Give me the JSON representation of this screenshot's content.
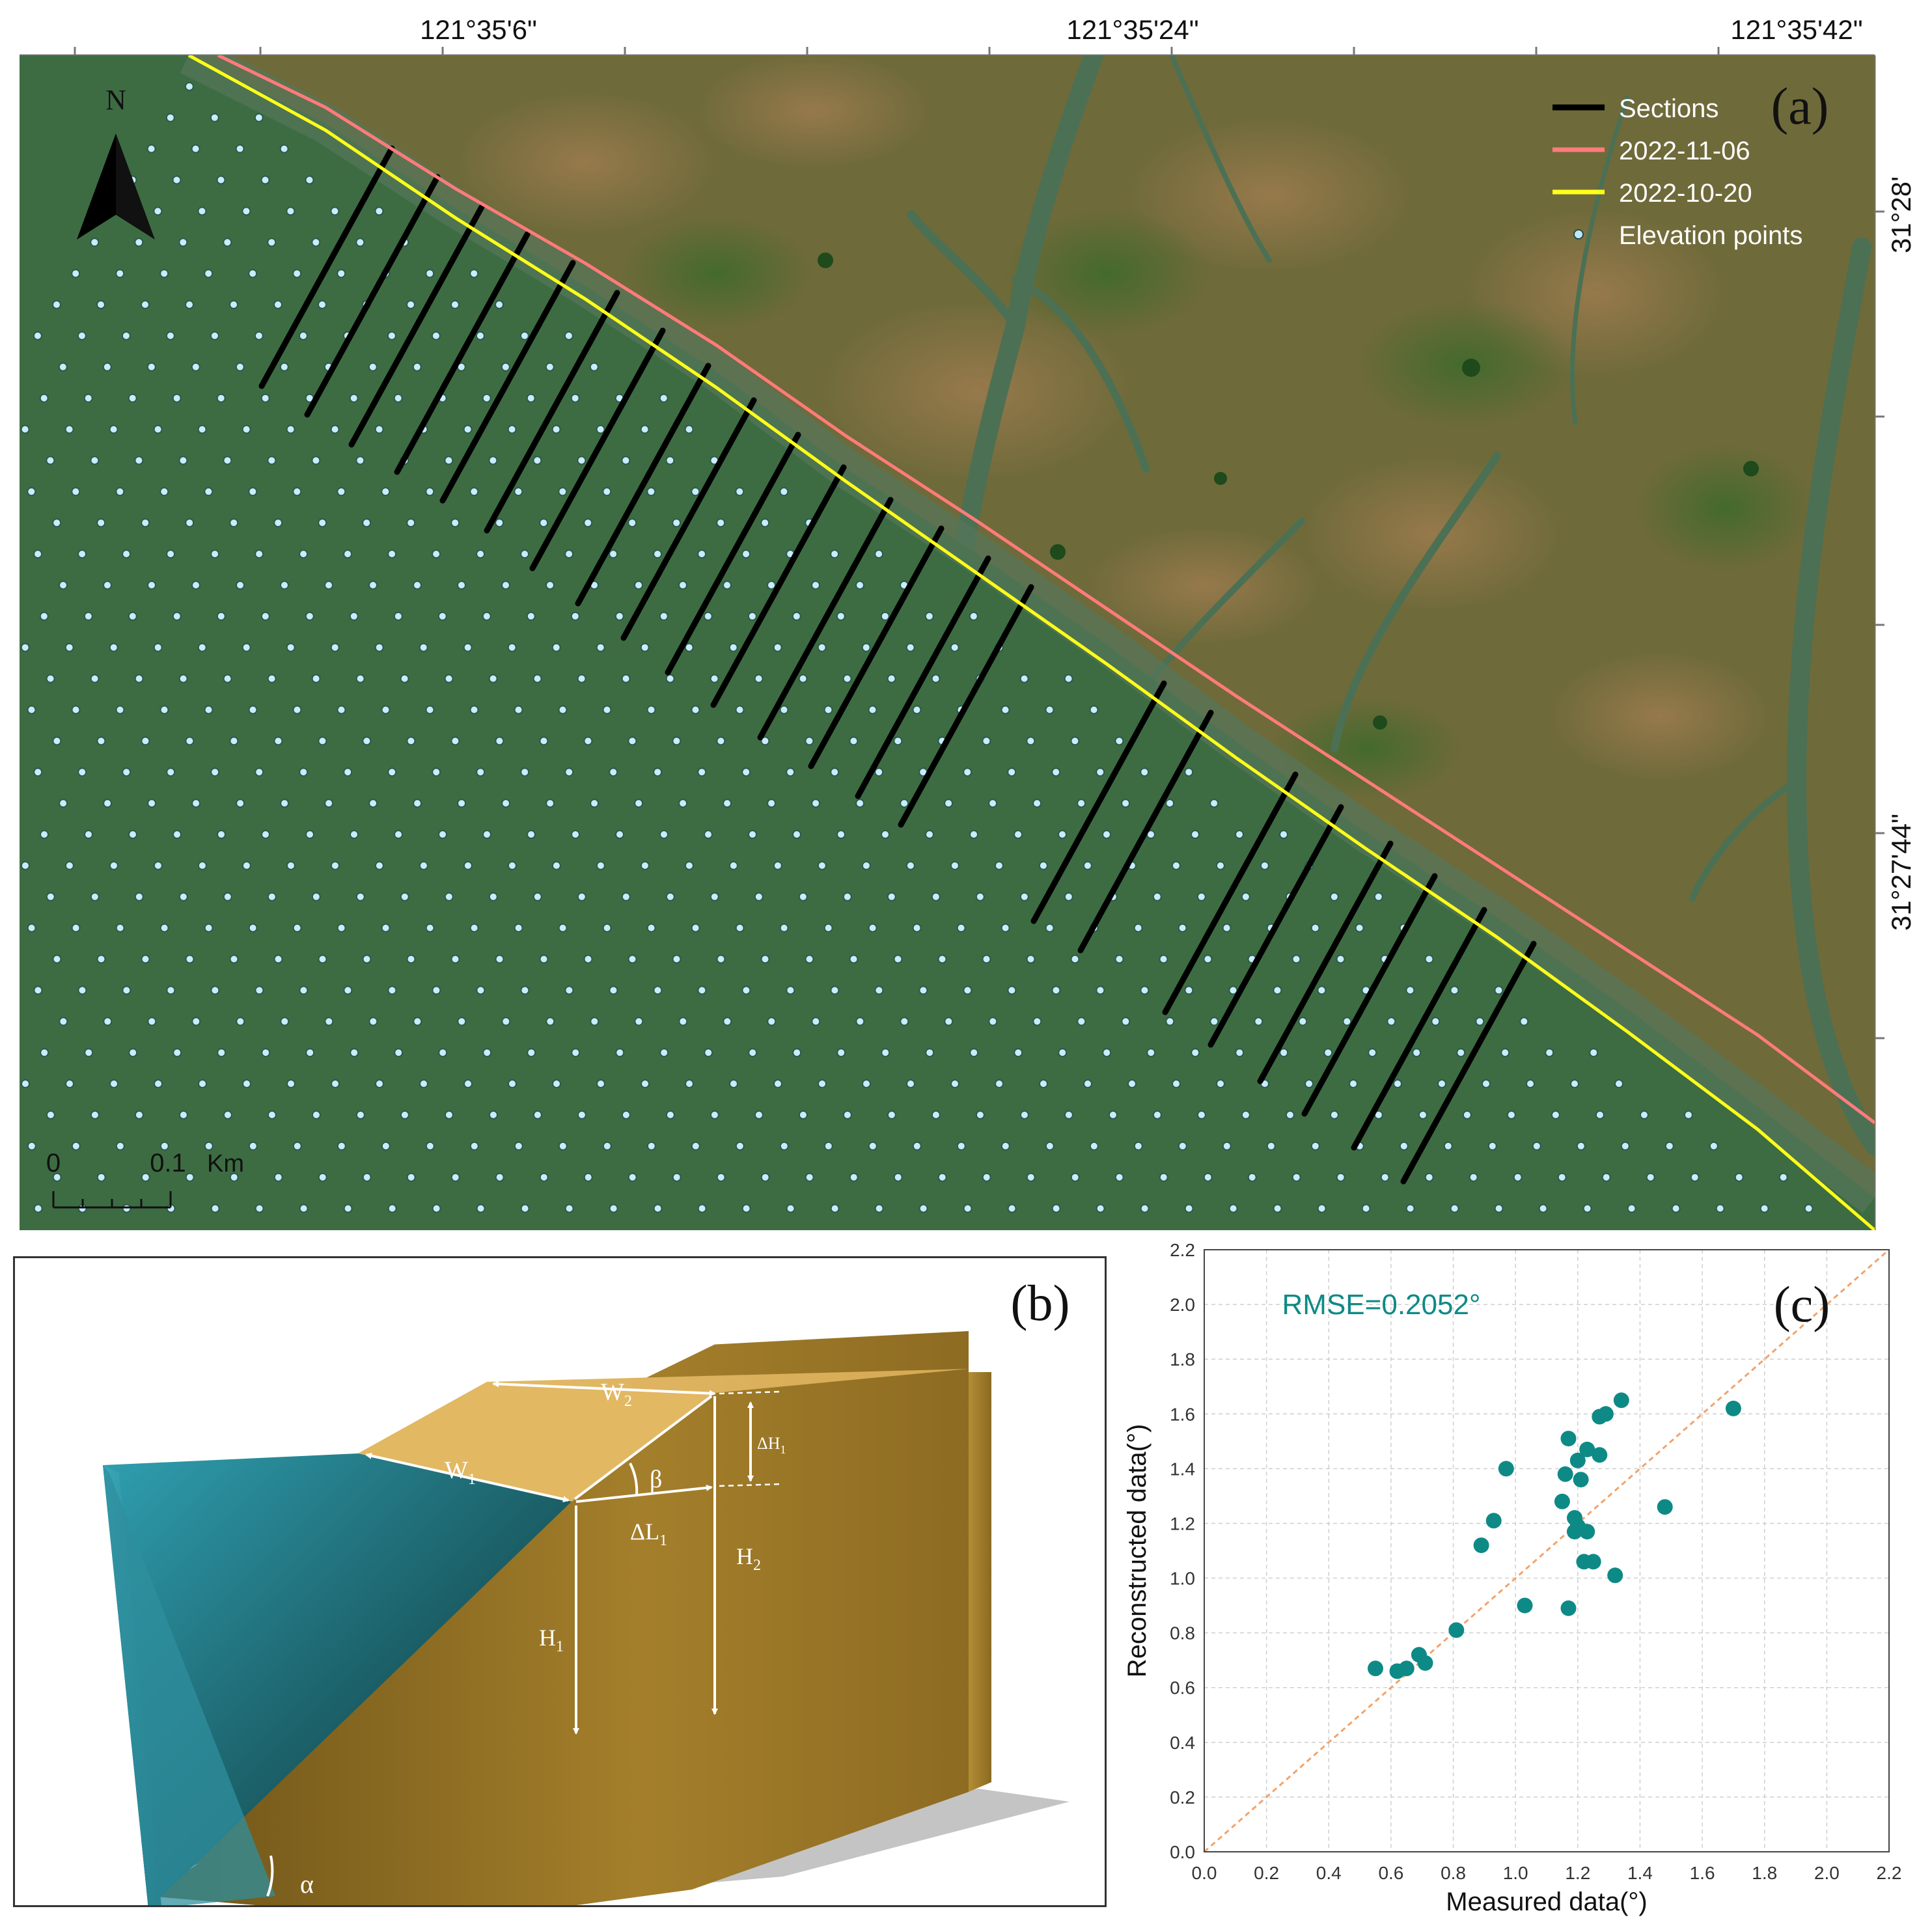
{
  "panel_a": {
    "label": "(a)",
    "coordinates": {
      "top": [
        "121°35'6\"",
        "121°35'24\"",
        "121°35'42\""
      ],
      "right": [
        "31°28'",
        "31°27'44\""
      ]
    },
    "legend": [
      {
        "key": "sections",
        "label": "Sections",
        "color": "#000000",
        "symbol": "line"
      },
      {
        "key": "date1",
        "label": "2022-11-06",
        "color": "#ff7b7b",
        "symbol": "line"
      },
      {
        "key": "date2",
        "label": "2022-10-20",
        "color": "#ffff1a",
        "symbol": "line"
      },
      {
        "key": "points",
        "label": "Elevation points",
        "color": "#bfe8ff",
        "symbol": "dot"
      }
    ],
    "north_arrow": "N",
    "scale_bar": {
      "start": "0",
      "end": "0.1",
      "unit": "Km"
    },
    "colors": {
      "water": "#3d6c43",
      "marsh": "#6f6a3a",
      "shoreline_red": "#ff7b7b",
      "shoreline_yellow": "#ffff1a"
    }
  },
  "panel_b": {
    "label": "(b)",
    "symbols": {
      "w1": "W",
      "w1_sub": "1",
      "w2": "W",
      "w2_sub": "2",
      "dh1": "ΔH",
      "dh1_sub": "1",
      "beta": "β",
      "dl1": "ΔL",
      "dl1_sub": "1",
      "h1": "H",
      "h1_sub": "1",
      "h2": "H",
      "h2_sub": "2",
      "alpha": "α"
    },
    "colors": {
      "water": "#1b5e66",
      "sediment": "#b28a30",
      "top": "#e2b863"
    }
  },
  "panel_c": {
    "label": "(c)",
    "rmse": "RMSE=0.2052°",
    "colors": {
      "points": "#0e8a86",
      "diagonal": "#f2a36b"
    }
  },
  "chart_data": {
    "type": "scatter",
    "title": "",
    "xlabel": "Measured data(°)",
    "ylabel": "Reconstructed data(°)",
    "xlim": [
      0.0,
      2.2
    ],
    "ylim": [
      0.0,
      2.2
    ],
    "xticks": [
      "0.0",
      "0.2",
      "0.4",
      "0.6",
      "0.8",
      "1.0",
      "1.2",
      "1.4",
      "1.6",
      "1.8",
      "2.0",
      "2.2"
    ],
    "yticks": [
      "0.0",
      "0.2",
      "0.4",
      "0.6",
      "0.8",
      "1.0",
      "1.2",
      "1.4",
      "1.6",
      "1.8",
      "2.0",
      "2.2"
    ],
    "grid": true,
    "annotation": "RMSE=0.2052°",
    "reference_line": "y = x",
    "points": [
      [
        0.55,
        0.67
      ],
      [
        0.62,
        0.66
      ],
      [
        0.65,
        0.67
      ],
      [
        0.69,
        0.72
      ],
      [
        0.71,
        0.69
      ],
      [
        0.81,
        0.81
      ],
      [
        0.89,
        1.12
      ],
      [
        0.93,
        1.21
      ],
      [
        0.97,
        1.4
      ],
      [
        1.03,
        0.9
      ],
      [
        1.15,
        1.28
      ],
      [
        1.16,
        1.38
      ],
      [
        1.17,
        0.89
      ],
      [
        1.17,
        1.51
      ],
      [
        1.19,
        1.17
      ],
      [
        1.19,
        1.22
      ],
      [
        1.2,
        1.19
      ],
      [
        1.2,
        1.43
      ],
      [
        1.21,
        1.36
      ],
      [
        1.22,
        1.06
      ],
      [
        1.23,
        1.17
      ],
      [
        1.23,
        1.47
      ],
      [
        1.25,
        1.06
      ],
      [
        1.27,
        1.45
      ],
      [
        1.27,
        1.59
      ],
      [
        1.29,
        1.6
      ],
      [
        1.32,
        1.01
      ],
      [
        1.34,
        1.65
      ],
      [
        1.48,
        1.26
      ],
      [
        1.7,
        1.62
      ]
    ]
  }
}
